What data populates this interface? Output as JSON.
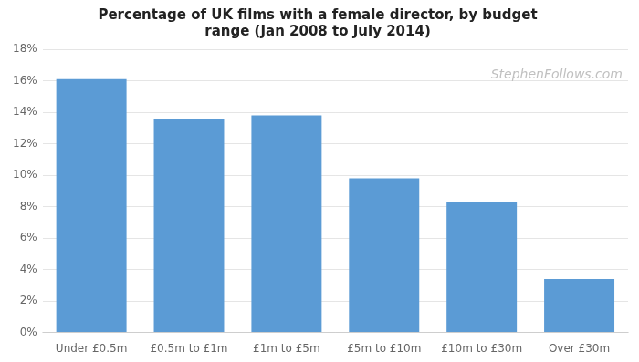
{
  "chart_data": {
    "type": "bar",
    "title": "Percentage of UK films with a female director, by budget\nrange (Jan 2008 to July 2014)",
    "categories": [
      "Under £0.5m",
      "£0.5m to £1m",
      "£1m to £5m",
      "£5m to £10m",
      "£10m to £30m",
      "Over £30m"
    ],
    "values": [
      0.161,
      0.136,
      0.138,
      0.098,
      0.083,
      0.034
    ],
    "color": "#5b9bd5",
    "ylim": [
      0,
      0.18
    ],
    "yticks": [
      {
        "value": 0,
        "label": "0%"
      },
      {
        "value": 0.02,
        "label": "2%"
      },
      {
        "value": 0.04,
        "label": "4%"
      },
      {
        "value": 0.06,
        "label": "6%"
      },
      {
        "value": 0.08,
        "label": "8%"
      },
      {
        "value": 0.1,
        "label": "10%"
      },
      {
        "value": 0.12,
        "label": "12%"
      },
      {
        "value": 0.14,
        "label": "14%"
      },
      {
        "value": 0.16,
        "label": "16%"
      },
      {
        "value": 0.18,
        "label": "18%"
      }
    ],
    "grid": true,
    "annotations": [
      "StephenFollows.com"
    ]
  }
}
